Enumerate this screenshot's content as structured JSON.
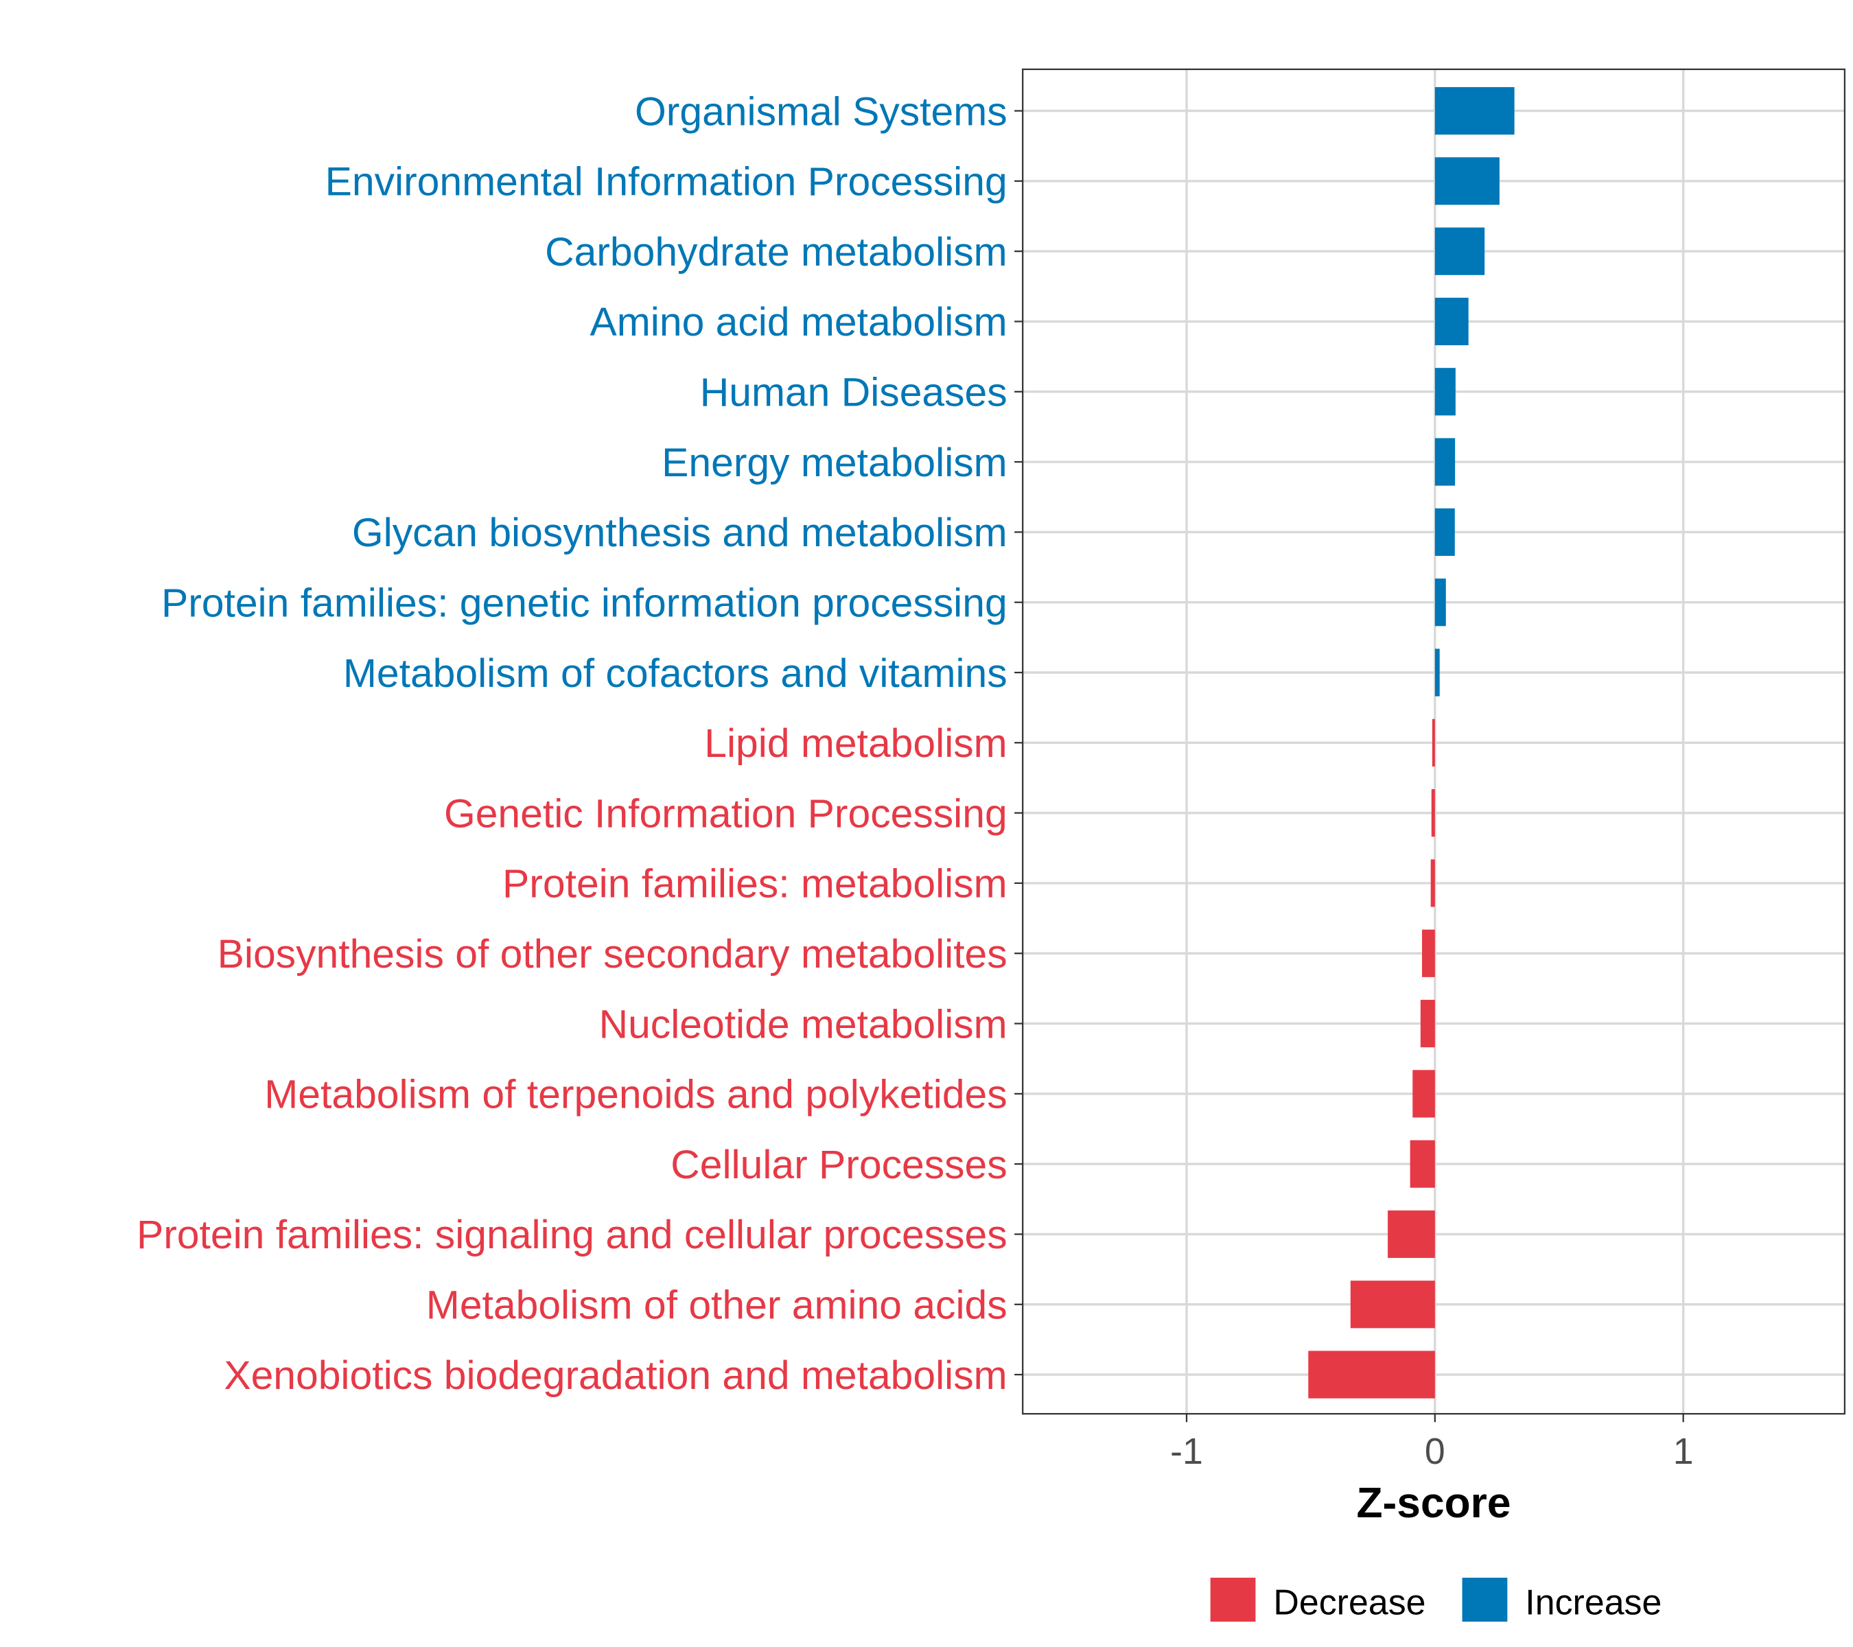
{
  "chart_data": {
    "type": "bar",
    "orientation": "horizontal",
    "title": "",
    "xlabel": "Z-score",
    "ylabel": "",
    "xlim": [
      -1.66,
      1.65
    ],
    "xticks": [
      -1,
      0,
      1
    ],
    "xtick_labels": [
      "-1",
      "0",
      "1"
    ],
    "grid": true,
    "categories": [
      "Organismal Systems",
      "Environmental Information Processing",
      "Carbohydrate metabolism",
      "Amino acid metabolism",
      "Human Diseases",
      "Energy metabolism",
      "Glycan biosynthesis and metabolism",
      "Protein families: genetic information processing",
      "Metabolism of cofactors and vitamins",
      "Lipid metabolism",
      "Genetic Information Processing",
      "Protein families: metabolism",
      "Biosynthesis of other secondary metabolites",
      "Nucleotide metabolism",
      "Metabolism of terpenoids and polyketides",
      "Cellular Processes",
      "Protein families: signaling and cellular processes",
      "Metabolism of other amino acids",
      "Xenobiotics biodegradation and metabolism"
    ],
    "values": [
      0.32,
      0.26,
      0.2,
      0.135,
      0.083,
      0.081,
      0.08,
      0.044,
      0.019,
      -0.011,
      -0.014,
      -0.017,
      -0.052,
      -0.058,
      -0.09,
      -0.1,
      -0.19,
      -0.34,
      -0.51
    ],
    "legend": {
      "placement": "bottom",
      "entries": [
        {
          "label": "Decrease",
          "color": "#E63946"
        },
        {
          "label": "Increase",
          "color": "#0077B6"
        }
      ]
    },
    "colors": {
      "increase": "#0077B6",
      "decrease": "#E63946"
    }
  }
}
